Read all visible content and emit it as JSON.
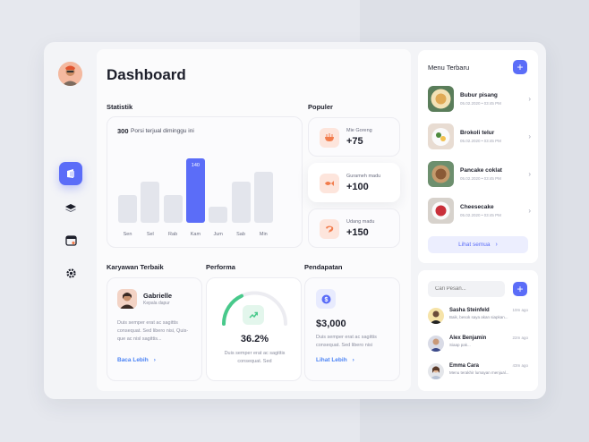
{
  "page": {
    "title": "Dashboard"
  },
  "statistik": {
    "heading": "Statistik",
    "value": "300",
    "caption": "Porsi terjual diminggu ini",
    "highlight_label": "140"
  },
  "chart_data": {
    "type": "bar",
    "categories": [
      "Sen",
      "Sel",
      "Rab",
      "Kam",
      "Jum",
      "Sab",
      "Min"
    ],
    "values": [
      60,
      90,
      60,
      140,
      35,
      90,
      110
    ],
    "ylim": [
      0,
      140
    ],
    "highlight_index": 3,
    "colors": {
      "bar": "#e3e5ec",
      "highlight": "#5b6df8"
    }
  },
  "populer": {
    "heading": "Populer",
    "items": [
      {
        "name": "Mie Goreng",
        "value": "+75",
        "icon": "noodle-bowl-icon"
      },
      {
        "name": "Gurameh madu",
        "value": "+100",
        "icon": "fish-icon"
      },
      {
        "name": "Udang madu",
        "value": "+150",
        "icon": "shrimp-icon"
      }
    ]
  },
  "karyawan": {
    "heading": "Karyawan Terbaik",
    "name": "Gabrielle",
    "role": "Kepala dapur",
    "desc": "Duis semper erat ac sagittis consequat. Sed libero nisi, Quis-que ac nisl sagittis...",
    "link": "Baca Lebih"
  },
  "performa": {
    "heading": "Performa",
    "value": "36.2%",
    "progress": 0.362,
    "desc": "Duis semper erat ac sagittis consequat. Sed"
  },
  "pendapatan": {
    "heading": "Pendapatan",
    "value": "$3,000",
    "desc": "Duis semper erat ac sagittis consequat. Sed libero nisi",
    "link": "Lihat Lebih"
  },
  "menu": {
    "heading": "Menu Terbaru",
    "items": [
      {
        "name": "Bubur pisang",
        "date": "05.02.2020",
        "time": "03:45 PM"
      },
      {
        "name": "Brokoli telur",
        "date": "05.02.2020",
        "time": "03:45 PM"
      },
      {
        "name": "Pancake coklat",
        "date": "05.02.2020",
        "time": "03:45 PM"
      },
      {
        "name": "Cheesecake",
        "date": "05.02.2020",
        "time": "03:45 PM"
      }
    ],
    "see_all": "Lihat semua"
  },
  "chat": {
    "search_placeholder": "Cari Pesan...",
    "messages": [
      {
        "name": "Sasha Steinfeld",
        "text": "Baik, besok saya akan siapkan...",
        "time": "10m ago"
      },
      {
        "name": "Alex Benjamin",
        "text": "Siaap pak...",
        "time": "22m ago"
      },
      {
        "name": "Emma Cara",
        "text": "Menu terakhir lumayan menjual...",
        "time": "43m ago"
      }
    ]
  },
  "colors": {
    "accent": "#5b6df8",
    "link": "#4b83f5",
    "green": "#48c98b",
    "orange": "#f27c4c"
  }
}
